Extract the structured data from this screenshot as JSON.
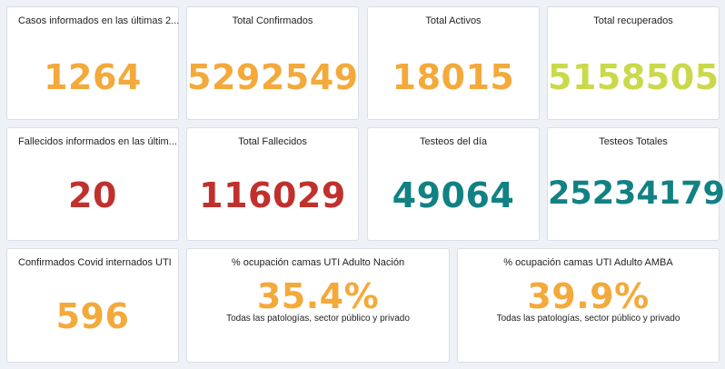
{
  "colors": {
    "orange": "#f4a93b",
    "lime": "#c9d94a",
    "red": "#c0312e",
    "teal": "#128184",
    "background": "#eef1f6"
  },
  "cards": {
    "casos_ultimas": {
      "title": "Casos informados en las últimas 2...",
      "value": "1264"
    },
    "total_confirmados": {
      "title": "Total Confirmados",
      "value": "5292549"
    },
    "total_activos": {
      "title": "Total Activos",
      "value": "18015"
    },
    "total_recuperados": {
      "title": "Total recuperados",
      "value": "5158505"
    },
    "fallecidos_ultimas": {
      "title": "Fallecidos informados en las últim...",
      "value": "20"
    },
    "total_fallecidos": {
      "title": "Total Fallecidos",
      "value": "116029"
    },
    "testeos_dia": {
      "title": "Testeos del día",
      "value": "49064"
    },
    "testeos_totales": {
      "title": "Testeos Totales",
      "value": "25234179"
    },
    "internados_uti": {
      "title": "Confirmados Covid internados UTI",
      "value": "596"
    },
    "ocupacion_nacion": {
      "title": "% ocupación camas UTI Adulto Nación",
      "value": "35.4%",
      "subtitle": "Todas las patologías, sector público y privado"
    },
    "ocupacion_amba": {
      "title": "% ocupación camas UTI Adulto AMBA",
      "value": "39.9%",
      "subtitle": "Todas las patologías, sector público y privado"
    }
  }
}
